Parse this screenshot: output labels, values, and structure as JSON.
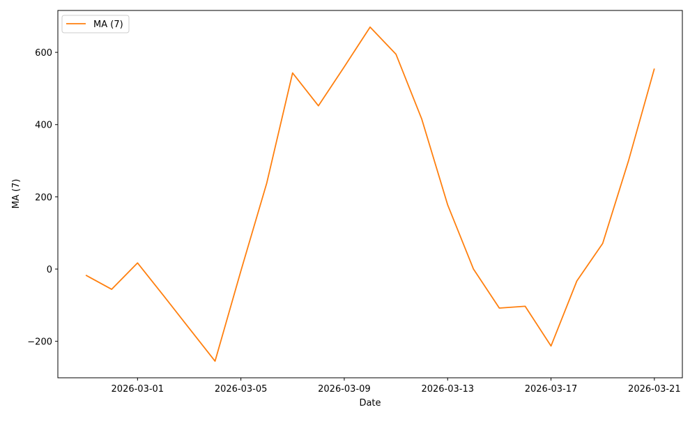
{
  "chart_data": {
    "type": "line",
    "title": "",
    "xlabel": "Date",
    "ylabel": "MA (7)",
    "x": [
      "2026-02-27",
      "2026-02-28",
      "2026-03-01",
      "2026-03-02",
      "2026-03-03",
      "2026-03-04",
      "2026-03-05",
      "2026-03-06",
      "2026-03-07",
      "2026-03-08",
      "2026-03-09",
      "2026-03-10",
      "2026-03-11",
      "2026-03-12",
      "2026-03-13",
      "2026-03-14",
      "2026-03-15",
      "2026-03-16",
      "2026-03-17",
      "2026-03-18",
      "2026-03-19",
      "2026-03-20",
      "2026-03-21"
    ],
    "series": [
      {
        "name": "MA (7)",
        "color": "#ff7f0e",
        "values": [
          -17,
          -56,
          17,
          -73,
          -164,
          -255,
          -5,
          238,
          543,
          452,
          560,
          670,
          595,
          415,
          178,
          0,
          -108,
          -103,
          -213,
          -33,
          71,
          300,
          555
        ]
      }
    ],
    "xticks": [
      "2026-03-01",
      "2026-03-05",
      "2026-03-09",
      "2026-03-13",
      "2026-03-17",
      "2026-03-21"
    ],
    "yticks": [
      -200,
      0,
      200,
      400,
      600
    ],
    "ylim": [
      -301,
      716
    ],
    "xlim": [
      "2026-02-25T22:00",
      "2026-03-22T02:00"
    ],
    "grid": false,
    "legend": {
      "placement": "top-left",
      "entries": [
        "MA (7)"
      ]
    }
  }
}
